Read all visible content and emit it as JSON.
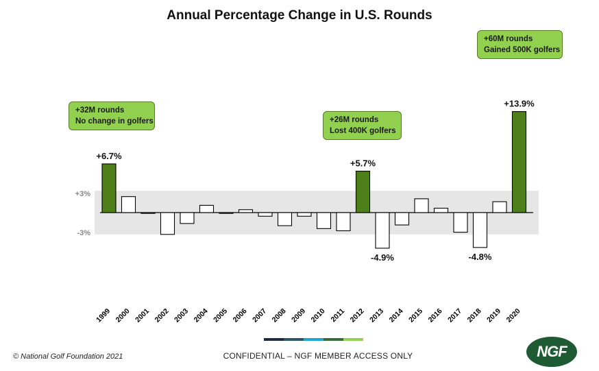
{
  "colors": {
    "highlight_bar": "#4e7f1a",
    "normal_bar": "#ffffff",
    "band": "#e6e6e6",
    "callout": "#92d050",
    "logo": "#1e5a32",
    "stripe": [
      "#1f2a44",
      "#2e5468",
      "#1ba6d4",
      "#3a6b3a",
      "#92d050"
    ]
  },
  "chart_data": {
    "type": "bar",
    "title": "Annual Percentage Change in U.S. Rounds",
    "categories": [
      "1999",
      "2000",
      "2001",
      "2002",
      "2003",
      "2004",
      "2005",
      "2006",
      "2007",
      "2008",
      "2009",
      "2010",
      "2011",
      "2012",
      "2013",
      "2014",
      "2015",
      "2016",
      "2017",
      "2018",
      "2019",
      "2020"
    ],
    "values": [
      6.7,
      2.2,
      -0.1,
      -3.0,
      -1.5,
      1.0,
      0.0,
      0.4,
      -0.5,
      -1.8,
      -0.5,
      -2.2,
      -2.5,
      5.7,
      -4.9,
      -1.7,
      1.9,
      0.6,
      -2.7,
      -4.8,
      1.5,
      13.9
    ],
    "highlighted": [
      "1999",
      "2012",
      "2020"
    ],
    "band": {
      "from": -3,
      "to": 3,
      "labels": [
        "+3%",
        "-3%"
      ]
    },
    "data_labels": [
      {
        "category": "1999",
        "text": "+6.7%"
      },
      {
        "category": "2012",
        "text": "+5.7%"
      },
      {
        "category": "2013",
        "text": "-4.9%"
      },
      {
        "category": "2018",
        "text": "-4.8%"
      },
      {
        "category": "2020",
        "text": "+13.9%"
      }
    ],
    "annotations": [
      {
        "category": "1999",
        "lines": [
          "+32M rounds",
          "No change in golfers"
        ]
      },
      {
        "category": "2012",
        "lines": [
          "+26M rounds",
          "Lost 400K golfers"
        ]
      },
      {
        "category": "2020",
        "lines": [
          "+60M rounds",
          "Gained 500K golfers"
        ]
      }
    ],
    "xlabel": "",
    "ylabel": "",
    "grid": false
  },
  "footer": {
    "copyright": "© National Golf Foundation 2021",
    "confidential": "CONFIDENTIAL – NGF MEMBER ACCESS ONLY",
    "logo_text": "NGF"
  }
}
